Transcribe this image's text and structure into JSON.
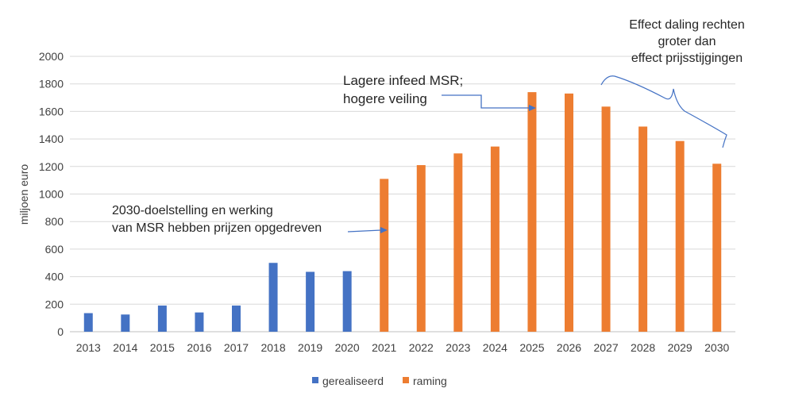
{
  "chart_data": {
    "type": "bar",
    "categories": [
      "2013",
      "2014",
      "2015",
      "2016",
      "2017",
      "2018",
      "2019",
      "2020",
      "2021",
      "2022",
      "2023",
      "2024",
      "2025",
      "2026",
      "2027",
      "2028",
      "2029",
      "2030"
    ],
    "series": [
      {
        "name": "gerealiseerd",
        "color": "#4472c4",
        "values": [
          135,
          125,
          190,
          140,
          190,
          500,
          435,
          440,
          null,
          null,
          null,
          null,
          null,
          null,
          null,
          null,
          null,
          null
        ]
      },
      {
        "name": "raming",
        "color": "#ed7d31",
        "values": [
          null,
          null,
          null,
          null,
          null,
          null,
          null,
          null,
          1110,
          1210,
          1295,
          1345,
          1740,
          1730,
          1635,
          1490,
          1385,
          1220
        ]
      }
    ],
    "ylabel": "miljoen euro",
    "ylim": [
      0,
      2000
    ],
    "yticks": [
      0,
      200,
      400,
      600,
      800,
      1000,
      1200,
      1400,
      1600,
      1800,
      2000
    ],
    "grid": true,
    "legend_position": "bottom",
    "annotations": {
      "reform": [
        "2030-doelstelling en werking",
        "van MSR hebben prijzen opgedreven"
      ],
      "msr": [
        "Lagere infeed MSR;",
        "hogere veiling"
      ],
      "effect": [
        "Effect daling rechten",
        "groter dan",
        "effect prijsstijgingen"
      ]
    }
  }
}
